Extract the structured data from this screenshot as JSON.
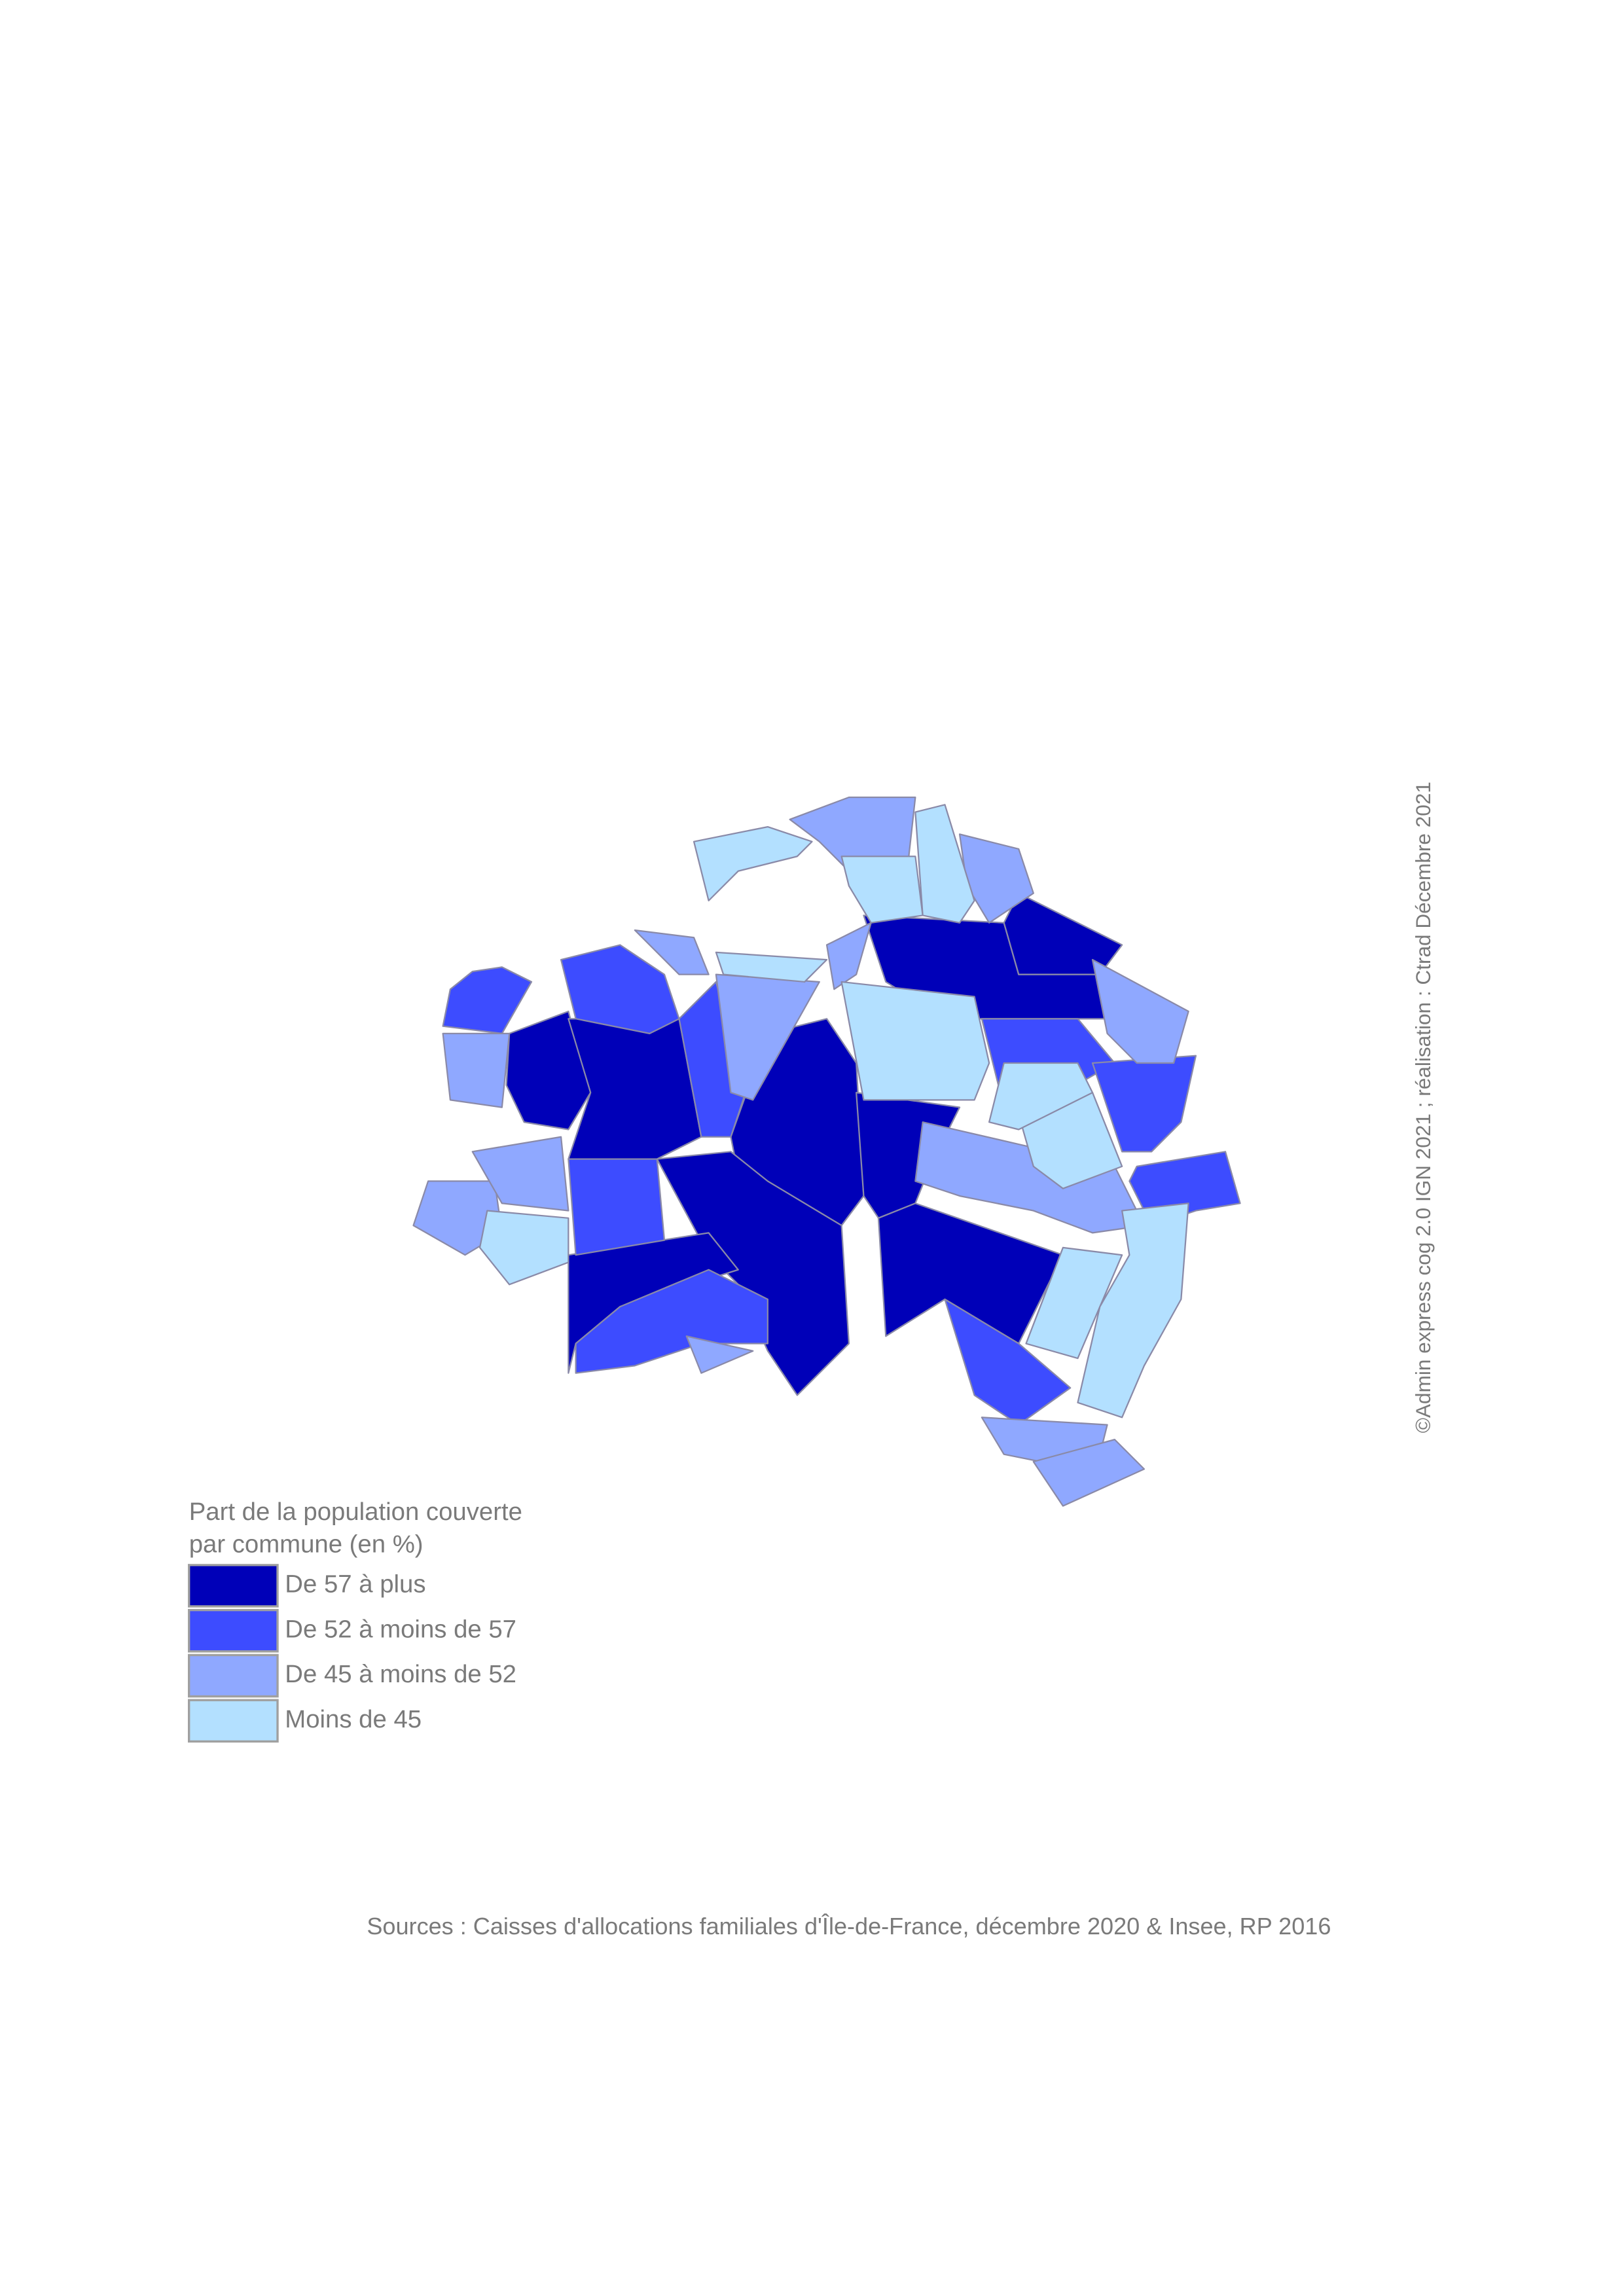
{
  "legend": {
    "title_lines": [
      "Part de la population couverte",
      "par commune (en %)"
    ],
    "items": [
      {
        "label": "De 57 à plus",
        "color": "#0000b8"
      },
      {
        "label": "De 52 à moins de 57",
        "color": "#3d4cff"
      },
      {
        "label": "De 45 à moins de 52",
        "color": "#8fa8ff"
      },
      {
        "label": "Moins de 45",
        "color": "#b3e0ff"
      }
    ]
  },
  "credit": "©Admin express cog 2.0 IGN 2021 ; réalisation : Ctrad Décembre 2021",
  "sources": "Sources : Caisses d'allocations familiales d'Île-de-France, décembre 2020 & Insee, RP 2016"
}
